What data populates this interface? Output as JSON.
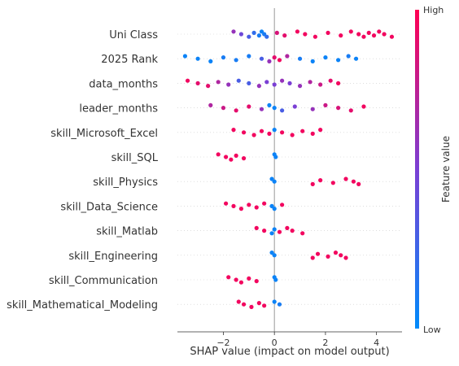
{
  "chart_data": {
    "type": "scatter",
    "subtype": "shap-beeswarm",
    "xlabel": "SHAP value (impact on model output)",
    "xlim": [
      -3.8,
      5.0
    ],
    "x_ticks": [
      -2,
      0,
      2,
      4
    ],
    "x_tick_labels": [
      "−2",
      "0",
      "2",
      "4"
    ],
    "features": [
      {
        "name": "Uni Class",
        "points": [
          {
            "x": -1.6,
            "v": 0.6
          },
          {
            "x": -1.3,
            "v": 0.45
          },
          {
            "x": -1.0,
            "v": 0.3
          },
          {
            "x": -0.8,
            "v": 0.2
          },
          {
            "x": -0.6,
            "v": 0.1
          },
          {
            "x": -0.5,
            "v": 0.05
          },
          {
            "x": -0.4,
            "v": 0.1
          },
          {
            "x": -0.3,
            "v": 0.2
          },
          {
            "x": 0.1,
            "v": 0.85
          },
          {
            "x": 0.4,
            "v": 0.9
          },
          {
            "x": 0.9,
            "v": 0.95
          },
          {
            "x": 1.2,
            "v": 0.95
          },
          {
            "x": 1.6,
            "v": 0.95
          },
          {
            "x": 2.1,
            "v": 0.95
          },
          {
            "x": 2.6,
            "v": 0.95
          },
          {
            "x": 3.0,
            "v": 0.95
          },
          {
            "x": 3.3,
            "v": 0.95
          },
          {
            "x": 3.5,
            "v": 0.95
          },
          {
            "x": 3.7,
            "v": 0.95
          },
          {
            "x": 3.9,
            "v": 0.95
          },
          {
            "x": 4.1,
            "v": 0.95
          },
          {
            "x": 4.3,
            "v": 0.95
          },
          {
            "x": 4.6,
            "v": 0.95
          }
        ]
      },
      {
        "name": "2025 Rank",
        "points": [
          {
            "x": -3.5,
            "v": 0.05
          },
          {
            "x": -3.0,
            "v": 0.05
          },
          {
            "x": -2.5,
            "v": 0.05
          },
          {
            "x": -2.0,
            "v": 0.1
          },
          {
            "x": -1.5,
            "v": 0.1
          },
          {
            "x": -1.0,
            "v": 0.1
          },
          {
            "x": -0.5,
            "v": 0.3
          },
          {
            "x": -0.2,
            "v": 0.6
          },
          {
            "x": 0.0,
            "v": 0.9
          },
          {
            "x": 0.2,
            "v": 0.95
          },
          {
            "x": 0.5,
            "v": 0.7
          },
          {
            "x": 1.0,
            "v": 0.1
          },
          {
            "x": 1.5,
            "v": 0.05
          },
          {
            "x": 2.0,
            "v": 0.05
          },
          {
            "x": 2.5,
            "v": 0.05
          },
          {
            "x": 2.9,
            "v": 0.1
          },
          {
            "x": 3.2,
            "v": 0.05
          }
        ]
      },
      {
        "name": "data_months",
        "points": [
          {
            "x": -3.4,
            "v": 0.95
          },
          {
            "x": -3.0,
            "v": 0.9
          },
          {
            "x": -2.6,
            "v": 0.9
          },
          {
            "x": -2.2,
            "v": 0.7
          },
          {
            "x": -1.8,
            "v": 0.6
          },
          {
            "x": -1.4,
            "v": 0.3
          },
          {
            "x": -1.0,
            "v": 0.3
          },
          {
            "x": -0.6,
            "v": 0.6
          },
          {
            "x": -0.3,
            "v": 0.5
          },
          {
            "x": 0.0,
            "v": 0.5
          },
          {
            "x": 0.3,
            "v": 0.6
          },
          {
            "x": 0.6,
            "v": 0.5
          },
          {
            "x": 1.0,
            "v": 0.6
          },
          {
            "x": 1.4,
            "v": 0.7
          },
          {
            "x": 1.8,
            "v": 0.8
          },
          {
            "x": 2.2,
            "v": 0.9
          },
          {
            "x": 2.5,
            "v": 0.95
          }
        ]
      },
      {
        "name": "leader_months",
        "points": [
          {
            "x": -2.5,
            "v": 0.7
          },
          {
            "x": -2.0,
            "v": 0.8
          },
          {
            "x": -1.5,
            "v": 0.9
          },
          {
            "x": -1.0,
            "v": 0.9
          },
          {
            "x": -0.5,
            "v": 0.6
          },
          {
            "x": -0.2,
            "v": 0.05
          },
          {
            "x": 0.0,
            "v": 0.05
          },
          {
            "x": 0.3,
            "v": 0.3
          },
          {
            "x": 0.8,
            "v": 0.5
          },
          {
            "x": 1.5,
            "v": 0.6
          },
          {
            "x": 2.0,
            "v": 0.8
          },
          {
            "x": 2.5,
            "v": 0.85
          },
          {
            "x": 3.0,
            "v": 0.9
          },
          {
            "x": 3.5,
            "v": 0.95
          }
        ]
      },
      {
        "name": "skill_Microsoft_Excel",
        "points": [
          {
            "x": -1.6,
            "v": 0.95
          },
          {
            "x": -1.2,
            "v": 0.95
          },
          {
            "x": -0.8,
            "v": 0.95
          },
          {
            "x": -0.5,
            "v": 0.95
          },
          {
            "x": -0.2,
            "v": 0.95
          },
          {
            "x": 0.0,
            "v": 0.05
          },
          {
            "x": 0.3,
            "v": 0.95
          },
          {
            "x": 0.7,
            "v": 0.95
          },
          {
            "x": 1.1,
            "v": 0.95
          },
          {
            "x": 1.5,
            "v": 0.95
          },
          {
            "x": 1.8,
            "v": 0.95
          }
        ]
      },
      {
        "name": "skill_SQL",
        "points": [
          {
            "x": -2.2,
            "v": 0.95
          },
          {
            "x": -1.9,
            "v": 0.95
          },
          {
            "x": -1.7,
            "v": 0.95
          },
          {
            "x": -1.5,
            "v": 0.95
          },
          {
            "x": -1.2,
            "v": 0.95
          },
          {
            "x": 0.0,
            "v": 0.05
          },
          {
            "x": 0.05,
            "v": 0.05
          }
        ]
      },
      {
        "name": "skill_Physics",
        "points": [
          {
            "x": -0.1,
            "v": 0.05
          },
          {
            "x": 0.0,
            "v": 0.05
          },
          {
            "x": 1.5,
            "v": 0.95
          },
          {
            "x": 1.8,
            "v": 0.95
          },
          {
            "x": 2.3,
            "v": 0.95
          },
          {
            "x": 2.8,
            "v": 0.95
          },
          {
            "x": 3.1,
            "v": 0.95
          },
          {
            "x": 3.3,
            "v": 0.95
          }
        ]
      },
      {
        "name": "skill_Data_Science",
        "points": [
          {
            "x": -1.9,
            "v": 0.95
          },
          {
            "x": -1.6,
            "v": 0.95
          },
          {
            "x": -1.3,
            "v": 0.95
          },
          {
            "x": -1.0,
            "v": 0.95
          },
          {
            "x": -0.7,
            "v": 0.95
          },
          {
            "x": -0.4,
            "v": 0.95
          },
          {
            "x": -0.1,
            "v": 0.05
          },
          {
            "x": 0.0,
            "v": 0.05
          },
          {
            "x": 0.3,
            "v": 0.95
          }
        ]
      },
      {
        "name": "skill_Matlab",
        "points": [
          {
            "x": -0.7,
            "v": 0.95
          },
          {
            "x": -0.4,
            "v": 0.95
          },
          {
            "x": -0.1,
            "v": 0.05
          },
          {
            "x": 0.0,
            "v": 0.05
          },
          {
            "x": 0.2,
            "v": 0.95
          },
          {
            "x": 0.5,
            "v": 0.95
          },
          {
            "x": 0.7,
            "v": 0.95
          },
          {
            "x": 1.1,
            "v": 0.95
          }
        ]
      },
      {
        "name": "skill_Engineering",
        "points": [
          {
            "x": -0.1,
            "v": 0.05
          },
          {
            "x": 0.0,
            "v": 0.05
          },
          {
            "x": 1.5,
            "v": 0.95
          },
          {
            "x": 1.7,
            "v": 0.95
          },
          {
            "x": 2.1,
            "v": 0.95
          },
          {
            "x": 2.4,
            "v": 0.95
          },
          {
            "x": 2.6,
            "v": 0.95
          },
          {
            "x": 2.8,
            "v": 0.95
          }
        ]
      },
      {
        "name": "skill_Communication",
        "points": [
          {
            "x": -1.8,
            "v": 0.95
          },
          {
            "x": -1.5,
            "v": 0.95
          },
          {
            "x": -1.3,
            "v": 0.95
          },
          {
            "x": -1.0,
            "v": 0.95
          },
          {
            "x": -0.7,
            "v": 0.95
          },
          {
            "x": 0.0,
            "v": 0.05
          },
          {
            "x": 0.05,
            "v": 0.05
          }
        ]
      },
      {
        "name": "skill_Mathematical_Modeling",
        "points": [
          {
            "x": -1.4,
            "v": 0.95
          },
          {
            "x": -1.2,
            "v": 0.95
          },
          {
            "x": -0.9,
            "v": 0.95
          },
          {
            "x": -0.6,
            "v": 0.95
          },
          {
            "x": -0.4,
            "v": 0.95
          },
          {
            "x": 0.0,
            "v": 0.05
          },
          {
            "x": 0.2,
            "v": 0.1
          }
        ]
      }
    ],
    "colorbar": {
      "label": "Feature value",
      "high_label": "High",
      "low_label": "Low",
      "low_color": "#008bfb",
      "high_color": "#ff0052"
    }
  }
}
